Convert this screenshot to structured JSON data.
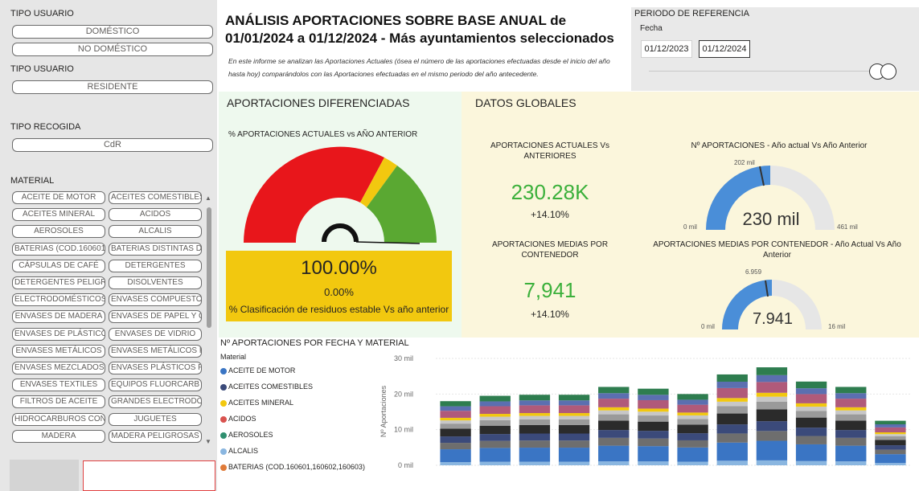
{
  "left": {
    "tipo_usuario_label_1": "TIPO USUARIO",
    "tipo_usuario_options_1": [
      "DOMÉSTICO",
      "NO DOMÉSTICO"
    ],
    "tipo_usuario_label_2": "TIPO USUARIO",
    "tipo_usuario_options_2": [
      "RESIDENTE"
    ],
    "tipo_recogida_label": "TIPO RECOGIDA",
    "tipo_recogida_options": [
      "CdR"
    ],
    "material_label": "MATERIAL",
    "material_options": [
      "ACEITE DE MOTOR",
      "ACEITES COMESTIBLES",
      "ACEITES MINERAL",
      "ACIDOS",
      "AEROSOLES",
      "ALCALIS",
      "BATERIAS (COD.160601",
      "BATERIAS DISTINTAS DE",
      "CÁPSULAS DE CAFÉ",
      "DETERGENTES",
      "DETERGENTES PELIGR",
      "DISOLVENTES",
      "ELECTRODOMÉSTICOS",
      "ENVASES COMPUESTOS",
      "ENVASES DE MADERA",
      "ENVASES DE PAPEL Y C",
      "ENVASES DE PLÁSTICO",
      "ENVASES DE VIDRIO",
      "ENVASES METÁLICOS",
      "ENVASES METÁLICOS P",
      "ENVASES MEZCLADOS",
      "ENVASES PLÁSTICOS P",
      "ENVASES TEXTILES",
      "EQUIPOS FLUORCARB",
      "FILTROS DE ACEITE",
      "GRANDES ELECTRODO",
      "HIDROCARBUROS CON",
      "JUGUETES",
      "MADERA",
      "MADERA PELIGROSAS"
    ]
  },
  "header": {
    "title": "ANÁLISIS APORTACIONES SOBRE BASE ANUAL de 01/01/2024 a 01/12/2024 - Más ayuntamientos seleccionados",
    "description": "En este informe se analizan las Aportaciones Actuales (ósea el número de las aportaciones efectuadas desde el inicio del año hasta hoy) comparándolos con las Aportaciones efectuadas en el mismo periodo del año antecedente."
  },
  "period": {
    "title": "PERIODO DE REFERENCIA",
    "field_label": "Fecha",
    "start_date": "01/12/2023",
    "end_date": "01/12/2024"
  },
  "diferenciadas": {
    "title": "APORTACIONES DIFERENCIADAS",
    "gauge_title": "% APORTACIONES ACTUALES vs AÑO ANTERIOR",
    "big_value": "100.00%",
    "small_value": "0.00%",
    "caption": "% Clasificación de residuos estable Vs año anterior",
    "colors": {
      "red": "#e8161b",
      "yellow": "#f2c80f",
      "green": "#5aa832",
      "box": "#f2c80f"
    }
  },
  "globales": {
    "title": "DATOS GLOBALES",
    "kpi1_label": "APORTACIONES ACTUALES Vs ANTERIORES",
    "kpi1_value": "230.28K",
    "kpi1_delta": "+14.10%",
    "kpi2_label": "APORTACIONES MEDIAS POR CONTENEDOR",
    "kpi2_value": "7,941",
    "kpi2_delta": "+14.10%",
    "gauge1_title": "Nº APORTACIONES - Año actual Vs Año Anterior",
    "gauge1_value": "230 mil",
    "gauge1_min": "0 mil",
    "gauge1_max": "461 mil",
    "gauge1_target": "202 mil",
    "gauge2_title": "APORTACIONES MEDIAS POR CONTENEDOR - Año Actual Vs Año Anterior",
    "gauge2_value": "7.941",
    "gauge2_min": "0 mil",
    "gauge2_max": "16 mil",
    "gauge2_target": "6.959",
    "accent": "#4a8ed8"
  },
  "bottom": {
    "title": "Nº APORTACIONES POR FECHA Y MATERIAL",
    "legend_title": "Material",
    "legend": [
      {
        "name": "ACEITE DE MOTOR",
        "color": "#3a75c4"
      },
      {
        "name": "ACEITES COMESTIBLES",
        "color": "#3b4a7a"
      },
      {
        "name": "ACEITES MINERAL",
        "color": "#f2c80f"
      },
      {
        "name": "ACIDOS",
        "color": "#d9534f"
      },
      {
        "name": "AEROSOLES",
        "color": "#2f8f6f"
      },
      {
        "name": "ALCALIS",
        "color": "#8ab6e0"
      },
      {
        "name": "BATERIAS (COD.160601,160602,160603)",
        "color": "#e07b39"
      }
    ]
  },
  "chart_data": {
    "type": "bar",
    "ylabel": "Nº Aportaciones",
    "yticks": [
      "0 mil",
      "10 mil",
      "20 mil",
      "30 mil"
    ],
    "ylim": [
      0,
      30000
    ],
    "totals": [
      18000,
      19500,
      19800,
      19800,
      22000,
      21500,
      20000,
      25500,
      27500,
      23500,
      22000,
      12500
    ],
    "segments": [
      {
        "color": "#8ab6e0",
        "frac": 0.05
      },
      {
        "color": "#3a75c4",
        "frac": 0.2
      },
      {
        "color": "#6e6e6e",
        "frac": 0.1
      },
      {
        "color": "#3b4a7a",
        "frac": 0.1
      },
      {
        "color": "#2b2b2b",
        "frac": 0.12
      },
      {
        "color": "#9a9a9a",
        "frac": 0.08
      },
      {
        "color": "#c7c7c7",
        "frac": 0.05
      },
      {
        "color": "#f2c80f",
        "frac": 0.04
      },
      {
        "color": "#b05a7a",
        "frac": 0.11
      },
      {
        "color": "#5b6fb0",
        "frac": 0.07
      },
      {
        "color": "#2e7d4f",
        "frac": 0.08
      }
    ]
  }
}
